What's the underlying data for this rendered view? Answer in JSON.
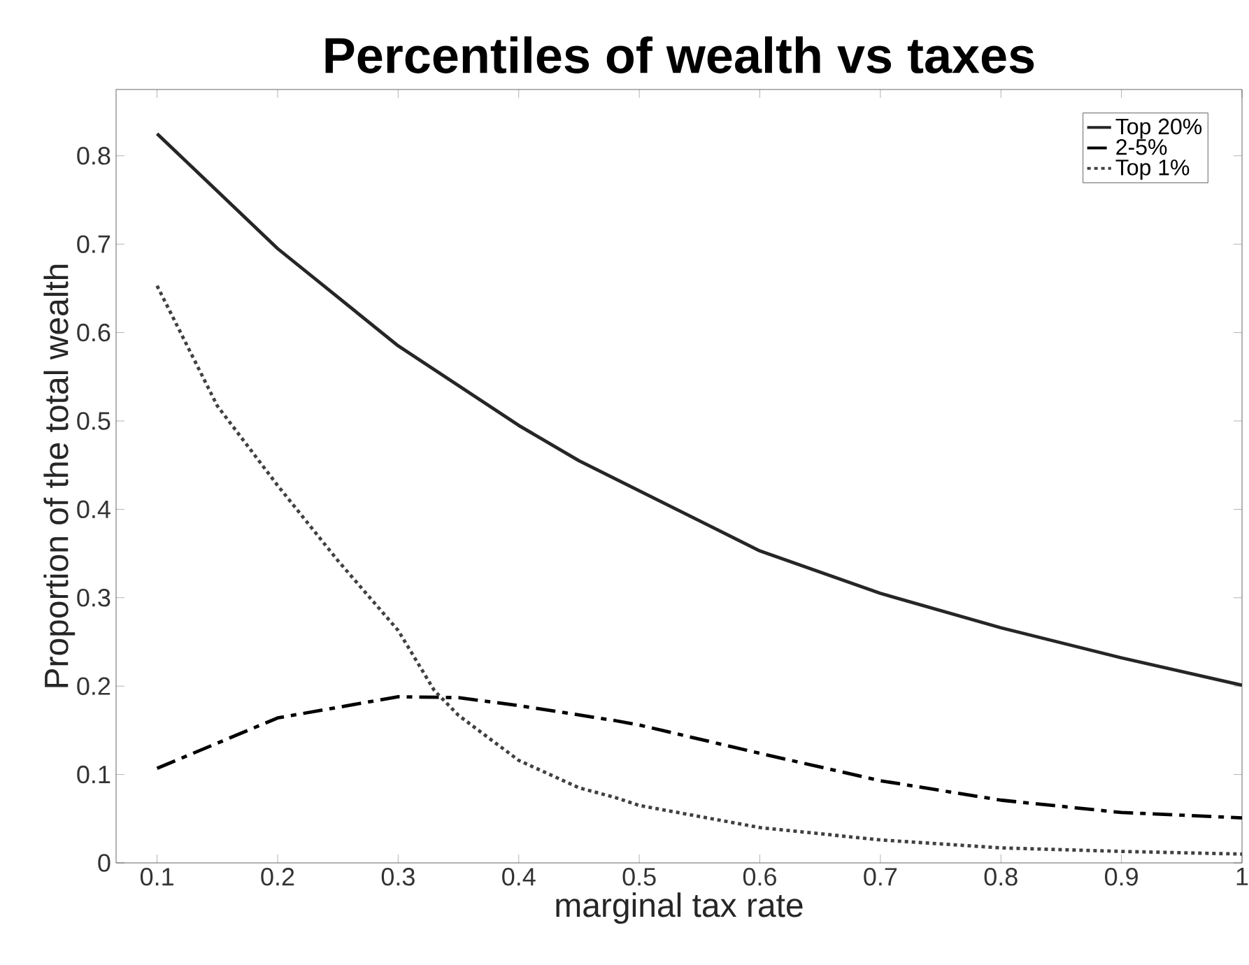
{
  "chart_data": {
    "type": "line",
    "title": "Percentiles of wealth vs taxes",
    "xlabel": "marginal tax rate",
    "ylabel": "Proportion of the total wealth",
    "xlim": [
      0.066,
      1
    ],
    "ylim": [
      0,
      0.875
    ],
    "xticks": [
      0.1,
      0.2,
      0.3,
      0.4,
      0.5,
      0.6,
      0.7,
      0.8,
      0.9,
      1
    ],
    "yticks": [
      0,
      0.1,
      0.2,
      0.3,
      0.4,
      0.5,
      0.6,
      0.7,
      0.8
    ],
    "grid": false,
    "legend": "top right",
    "marker": "none",
    "series": [
      {
        "name": "Top 20%",
        "color": "#262626",
        "line_style": "solid",
        "x": [
          0.1,
          0.2,
          0.3,
          0.4,
          0.45,
          0.5,
          0.6,
          0.7,
          0.8,
          0.9,
          1.0
        ],
        "values": [
          0.825,
          0.695,
          0.585,
          0.495,
          0.455,
          0.421,
          0.353,
          0.305,
          0.266,
          0.232,
          0.201
        ]
      },
      {
        "name": "2-5%",
        "color": "#000000",
        "line_style": "dashed",
        "x": [
          0.1,
          0.2,
          0.3,
          0.35,
          0.4,
          0.48,
          0.5,
          0.6,
          0.7,
          0.8,
          0.9,
          1.0
        ],
        "values": [
          0.107,
          0.164,
          0.188,
          0.187,
          0.178,
          0.161,
          0.156,
          0.124,
          0.093,
          0.071,
          0.057,
          0.051
        ]
      },
      {
        "name": "Top 1%",
        "color": "#404040",
        "line_style": "dotted",
        "x": [
          0.1,
          0.15,
          0.2,
          0.25,
          0.3,
          0.33,
          0.35,
          0.4,
          0.45,
          0.48,
          0.5,
          0.6,
          0.7,
          0.8,
          0.9,
          1.0
        ],
        "values": [
          0.653,
          0.517,
          0.427,
          0.342,
          0.263,
          0.195,
          0.167,
          0.116,
          0.085,
          0.074,
          0.065,
          0.04,
          0.026,
          0.017,
          0.013,
          0.01
        ]
      }
    ]
  }
}
